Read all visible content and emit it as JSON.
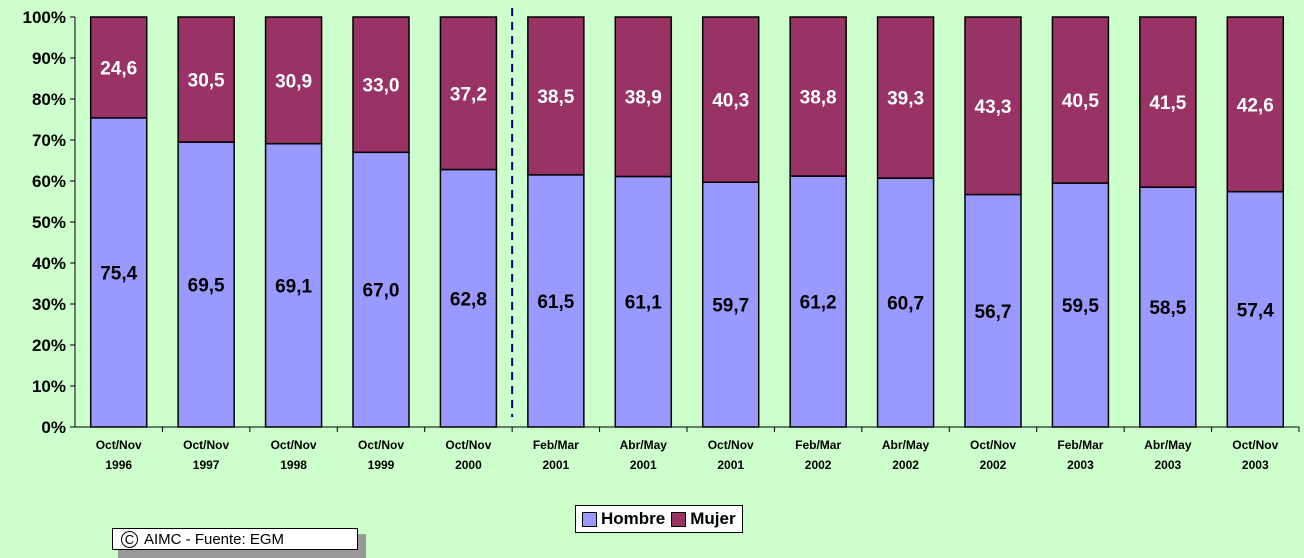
{
  "chart_data": {
    "type": "bar",
    "stacked": true,
    "percent": true,
    "categories": [
      [
        "Oct/Nov",
        "1996"
      ],
      [
        "Oct/Nov",
        "1997"
      ],
      [
        "Oct/Nov",
        "1998"
      ],
      [
        "Oct/Nov",
        "1999"
      ],
      [
        "Oct/Nov",
        "2000"
      ],
      [
        "Feb/Mar",
        "2001"
      ],
      [
        "Abr/May",
        "2001"
      ],
      [
        "Oct/Nov",
        "2001"
      ],
      [
        "Feb/Mar",
        "2002"
      ],
      [
        "Abr/May",
        "2002"
      ],
      [
        "Oct/Nov",
        "2002"
      ],
      [
        "Feb/Mar",
        "2003"
      ],
      [
        "Abr/May",
        "2003"
      ],
      [
        "Oct/Nov",
        "2003"
      ]
    ],
    "series": [
      {
        "name": "Hombre",
        "color": "#9999ff",
        "values": [
          75.4,
          69.5,
          69.1,
          67.0,
          62.8,
          61.5,
          61.1,
          59.7,
          61.2,
          60.7,
          56.7,
          59.5,
          58.5,
          57.4
        ],
        "labels": [
          "75,4",
          "69,5",
          "69,1",
          "67,0",
          "62,8",
          "61,5",
          "61,1",
          "59,7",
          "61,2",
          "60,7",
          "56,7",
          "59,5",
          "58,5",
          "57,4"
        ]
      },
      {
        "name": "Mujer",
        "color": "#993366",
        "values": [
          24.6,
          30.5,
          30.9,
          33.0,
          37.2,
          38.5,
          38.9,
          40.3,
          38.8,
          39.3,
          43.3,
          40.5,
          41.5,
          42.6
        ],
        "labels": [
          "24,6",
          "30,5",
          "30,9",
          "33,0",
          "37,2",
          "38,5",
          "38,9",
          "40,3",
          "38,8",
          "39,3",
          "43,3",
          "40,5",
          "41,5",
          "42,6"
        ]
      }
    ],
    "yticks": [
      "0%",
      "10%",
      "20%",
      "30%",
      "40%",
      "50%",
      "60%",
      "70%",
      "80%",
      "90%",
      "100%"
    ],
    "ylim": [
      0,
      100
    ],
    "divider_after_index": 4,
    "legend_position": "bottom"
  },
  "credit": {
    "symbol": "C",
    "text": "AIMC - Fuente: EGM"
  }
}
